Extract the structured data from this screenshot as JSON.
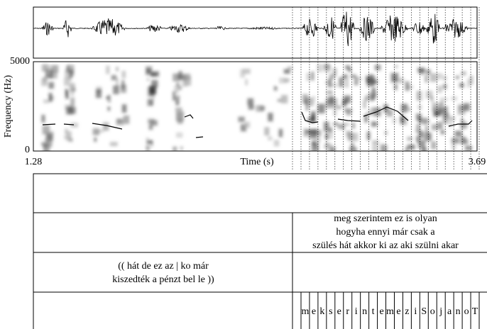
{
  "axes": {
    "y_label": "Frequency (Hz)",
    "y_top": "5000",
    "y_bottom": "0",
    "x_label": "Time (s)",
    "x_start": "1.28",
    "x_end": "3.69"
  },
  "tiers": {
    "sentence": [
      "meg szerintem ez is olyan",
      "hogyha ennyi már csak a",
      "szülés hát akkor ki az aki szülni akar"
    ],
    "previous": [
      "(( hát de ez az | ko már",
      "kiszedték a pénzt bel le ))"
    ],
    "phones": [
      "m",
      "e",
      "k",
      "s",
      "e",
      "r",
      "i",
      "n",
      "t",
      "e",
      "m",
      "e",
      "z",
      "i",
      "S",
      "o",
      "j",
      "a",
      "n",
      "o",
      "T"
    ]
  }
}
